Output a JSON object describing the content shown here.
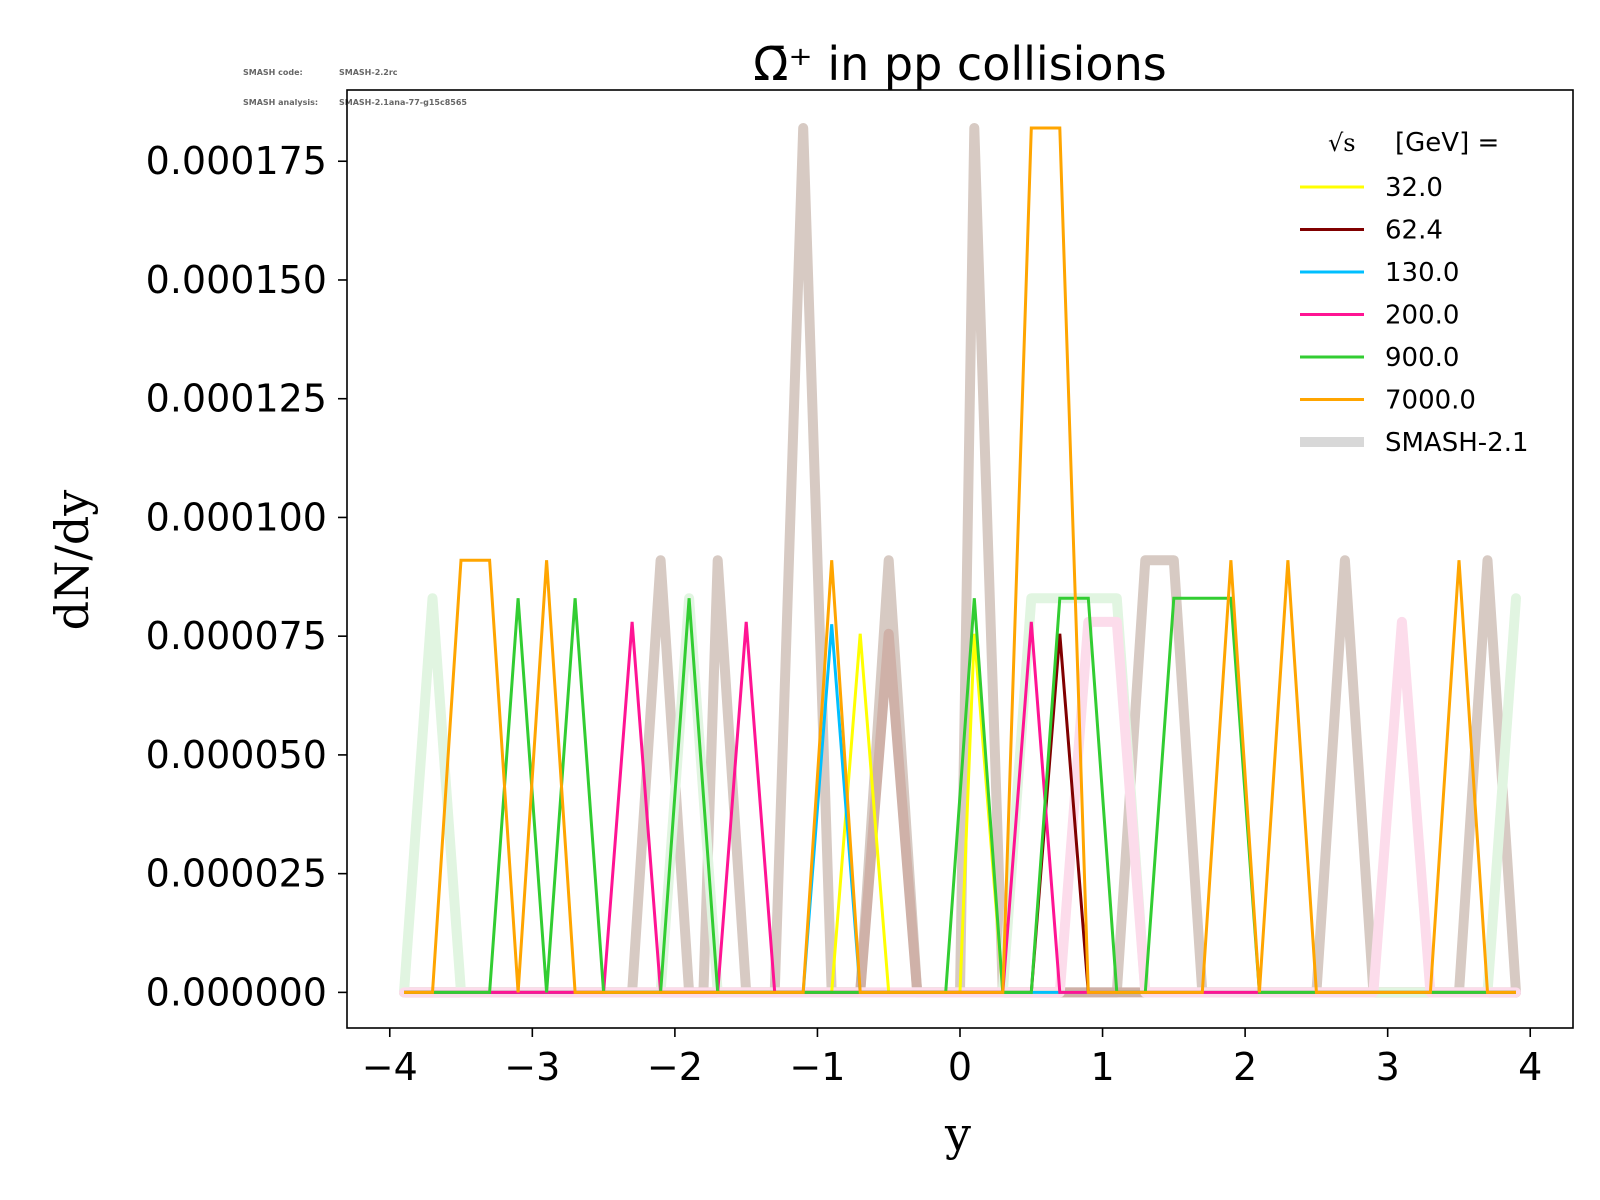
{
  "meta": {
    "code_label": "SMASH code:",
    "code_value": "SMASH-2.2rc",
    "analysis_label": "SMASH analysis:",
    "analysis_value": "SMASH-2.1ana-77-g15c8565"
  },
  "chart_data": {
    "type": "line",
    "title": "Ω̄⁺ in pp collisions",
    "xlabel": "y",
    "ylabel": "dN/dy",
    "xlim": [
      -4.3,
      4.3
    ],
    "ylim": [
      -7.5e-06,
      0.00019
    ],
    "xticks": [
      -4,
      -3,
      -2,
      -1,
      0,
      1,
      2,
      3,
      4
    ],
    "xtick_labels": [
      "−4",
      "−3",
      "−2",
      "−1",
      "0",
      "1",
      "2",
      "3",
      "4"
    ],
    "yticks": [
      0,
      2.5e-05,
      5e-05,
      7.5e-05,
      0.0001,
      0.000125,
      0.00015,
      0.000175
    ],
    "ytick_labels": [
      "0.000000",
      "0.000025",
      "0.000050",
      "0.000075",
      "0.000100",
      "0.000125",
      "0.000150",
      "0.000175"
    ],
    "grid": false,
    "legend_position": "top-right",
    "legend_title": "[GeV] =",
    "legend_title_symbol": "√s",
    "series": [
      {
        "name": "32.0",
        "color": "#ffff00",
        "x": [
          -3.9,
          -0.9,
          -0.7,
          -0.5,
          0.0,
          0.1,
          0.3,
          3.9
        ],
        "y": [
          0,
          0,
          7.55e-05,
          0,
          0,
          7.55e-05,
          0,
          0
        ]
      },
      {
        "name": "62.4",
        "color": "#800000",
        "x": [
          -3.9,
          0.5,
          0.7,
          0.9
        ],
        "y": [
          0,
          0,
          7.55e-05,
          0
        ]
      },
      {
        "name": "130.0",
        "color": "#00bfff",
        "x": [
          -3.9,
          -1.1,
          -0.9,
          -0.7,
          3.9
        ],
        "y": [
          0,
          0,
          7.75e-05,
          0,
          0
        ]
      },
      {
        "name": "200.0",
        "color": "#ff1493",
        "x": [
          -3.9,
          -2.5,
          -2.3,
          -2.1,
          -1.7,
          -1.5,
          -1.3,
          0.3,
          0.5,
          0.7,
          3.9
        ],
        "y": [
          0,
          0,
          7.8e-05,
          0,
          0,
          7.8e-05,
          0,
          0,
          7.8e-05,
          0,
          0
        ]
      },
      {
        "name": "900.0",
        "color": "#32cd32",
        "x": [
          -3.9,
          -3.3,
          -3.1,
          -2.9,
          -2.7,
          -2.5,
          -2.1,
          -1.9,
          -1.7,
          -0.1,
          0.1,
          0.3,
          0.5,
          0.7,
          0.9,
          1.1,
          1.3,
          1.5,
          1.7,
          1.9,
          2.1,
          3.9
        ],
        "y": [
          0,
          0,
          8.3e-05,
          0,
          8.3e-05,
          0,
          0,
          8.3e-05,
          0,
          0,
          8.3e-05,
          0,
          0,
          8.3e-05,
          8.3e-05,
          0,
          0,
          8.3e-05,
          8.3e-05,
          8.3e-05,
          0,
          0
        ]
      },
      {
        "name": "7000.0",
        "color": "#ffa500",
        "x": [
          -3.9,
          -3.7,
          -3.5,
          -3.3,
          -3.1,
          -2.9,
          -2.7,
          -1.1,
          -0.9,
          -0.7,
          0.3,
          0.5,
          0.7,
          0.9,
          1.7,
          1.9,
          2.1,
          2.1,
          2.3,
          2.5,
          3.3,
          3.5,
          3.7,
          3.9
        ],
        "y": [
          0,
          0,
          9.1e-05,
          9.1e-05,
          0,
          9.1e-05,
          0,
          0,
          9.1e-05,
          0,
          0,
          0.000182,
          0.000182,
          0,
          0,
          9.1e-05,
          0,
          0,
          9.1e-05,
          0,
          0,
          9.1e-05,
          0,
          0
        ]
      }
    ],
    "reference_series": [
      {
        "name": "SMASH-2.1",
        "legend_color": "#d8d8d8",
        "traces": [
          {
            "color": "#d7cac3",
            "x": [
              -3.9,
              -2.3,
              -2.1,
              -1.9,
              -1.8,
              -1.7,
              -1.5,
              -1.3,
              -1.1,
              -0.9,
              -0.7,
              -0.5,
              -0.3,
              0.0,
              0.1,
              0.3,
              1.1,
              1.3,
              1.5,
              1.7,
              2.5,
              2.7,
              2.9,
              3.5,
              3.7,
              3.9
            ],
            "y": [
              0,
              0,
              9.1e-05,
              0,
              0,
              9.1e-05,
              0,
              0,
              0.000182,
              0,
              0,
              9.1e-05,
              0,
              0,
              0.000182,
              0,
              0,
              9.1e-05,
              9.1e-05,
              0,
              0,
              9.1e-05,
              0,
              0,
              9.1e-05,
              0
            ]
          },
          {
            "color": "#cfb1a8",
            "x": [
              -3.9,
              -0.7,
              -0.5,
              -0.3,
              3.9
            ],
            "y": [
              0,
              0,
              7.55e-05,
              0,
              0
            ]
          },
          {
            "color": "#e1f5e1",
            "x": [
              -3.9,
              -3.7,
              -3.5,
              -2.1,
              -1.9,
              -1.7,
              0.3,
              0.5,
              0.9,
              1.1,
              1.3,
              3.5,
              3.7,
              3.9
            ],
            "y": [
              0,
              8.3e-05,
              0,
              0,
              8.3e-05,
              0,
              0,
              8.3e-05,
              8.3e-05,
              8.3e-05,
              0,
              0,
              0,
              8.3e-05
            ]
          },
          {
            "color": "#fcdceb",
            "x": [
              -3.9,
              0.7,
              0.9,
              1.1,
              1.3,
              2.9,
              3.1,
              3.3,
              3.9
            ],
            "y": [
              0,
              0,
              7.8e-05,
              7.8e-05,
              0,
              0,
              7.8e-05,
              0,
              0
            ]
          }
        ]
      }
    ]
  }
}
